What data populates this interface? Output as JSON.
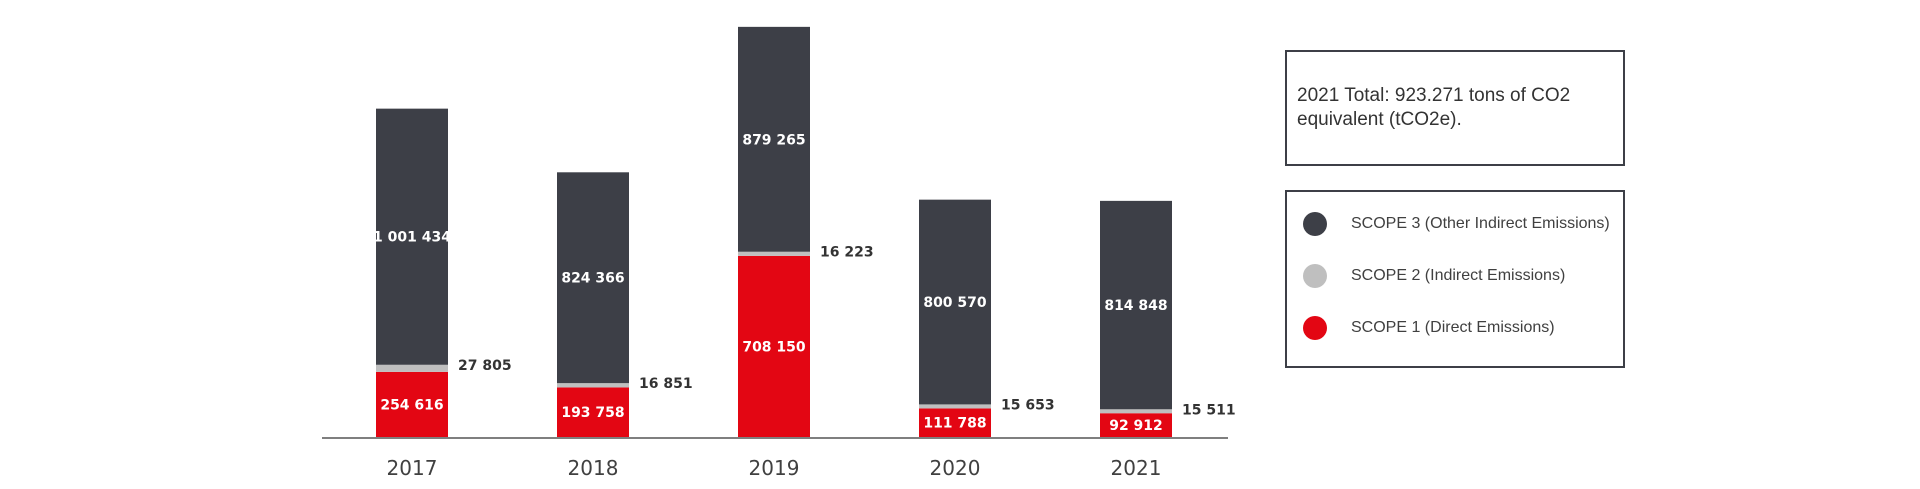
{
  "chart_data": {
    "type": "bar",
    "stacked": true,
    "categories": [
      "2017",
      "2018",
      "2019",
      "2020",
      "2021"
    ],
    "series": [
      {
        "name": "SCOPE 1 (Direct Emissions)",
        "color": "#e30613",
        "values": [
          254616,
          193758,
          708150,
          111788,
          92912
        ],
        "labels": [
          "254 616",
          "193 758",
          "708 150",
          "111 788",
          "92 912"
        ]
      },
      {
        "name": "SCOPE 2 (Indirect Emissions)",
        "color": "#bfbfbf",
        "values": [
          27805,
          16851,
          16223,
          15653,
          15511
        ],
        "labels": [
          "27 805",
          "16 851",
          "16 223",
          "15 653",
          "15 511"
        ]
      },
      {
        "name": "SCOPE 3 (Other Indirect Emissions)",
        "color": "#3d3f47",
        "values": [
          1001434,
          824366,
          879265,
          800570,
          814848
        ],
        "labels": [
          "1 001 434",
          "824 366",
          "879 265",
          "800 570",
          "814 848"
        ]
      }
    ],
    "ylim": [
      0,
      1650000
    ],
    "grid": false,
    "legend_position": "right"
  },
  "summary": {
    "total_text": "2021 Total: 923.271 tons of CO2 equivalent (tCO2e)."
  },
  "legend": {
    "items": [
      {
        "label": "SCOPE 3 (Other Indirect Emissions)",
        "color": "#3d3f47"
      },
      {
        "label": "SCOPE 2 (Indirect Emissions)",
        "color": "#bfbfbf"
      },
      {
        "label": "SCOPE 1 (Direct Emissions)",
        "color": "#e30613"
      }
    ]
  }
}
